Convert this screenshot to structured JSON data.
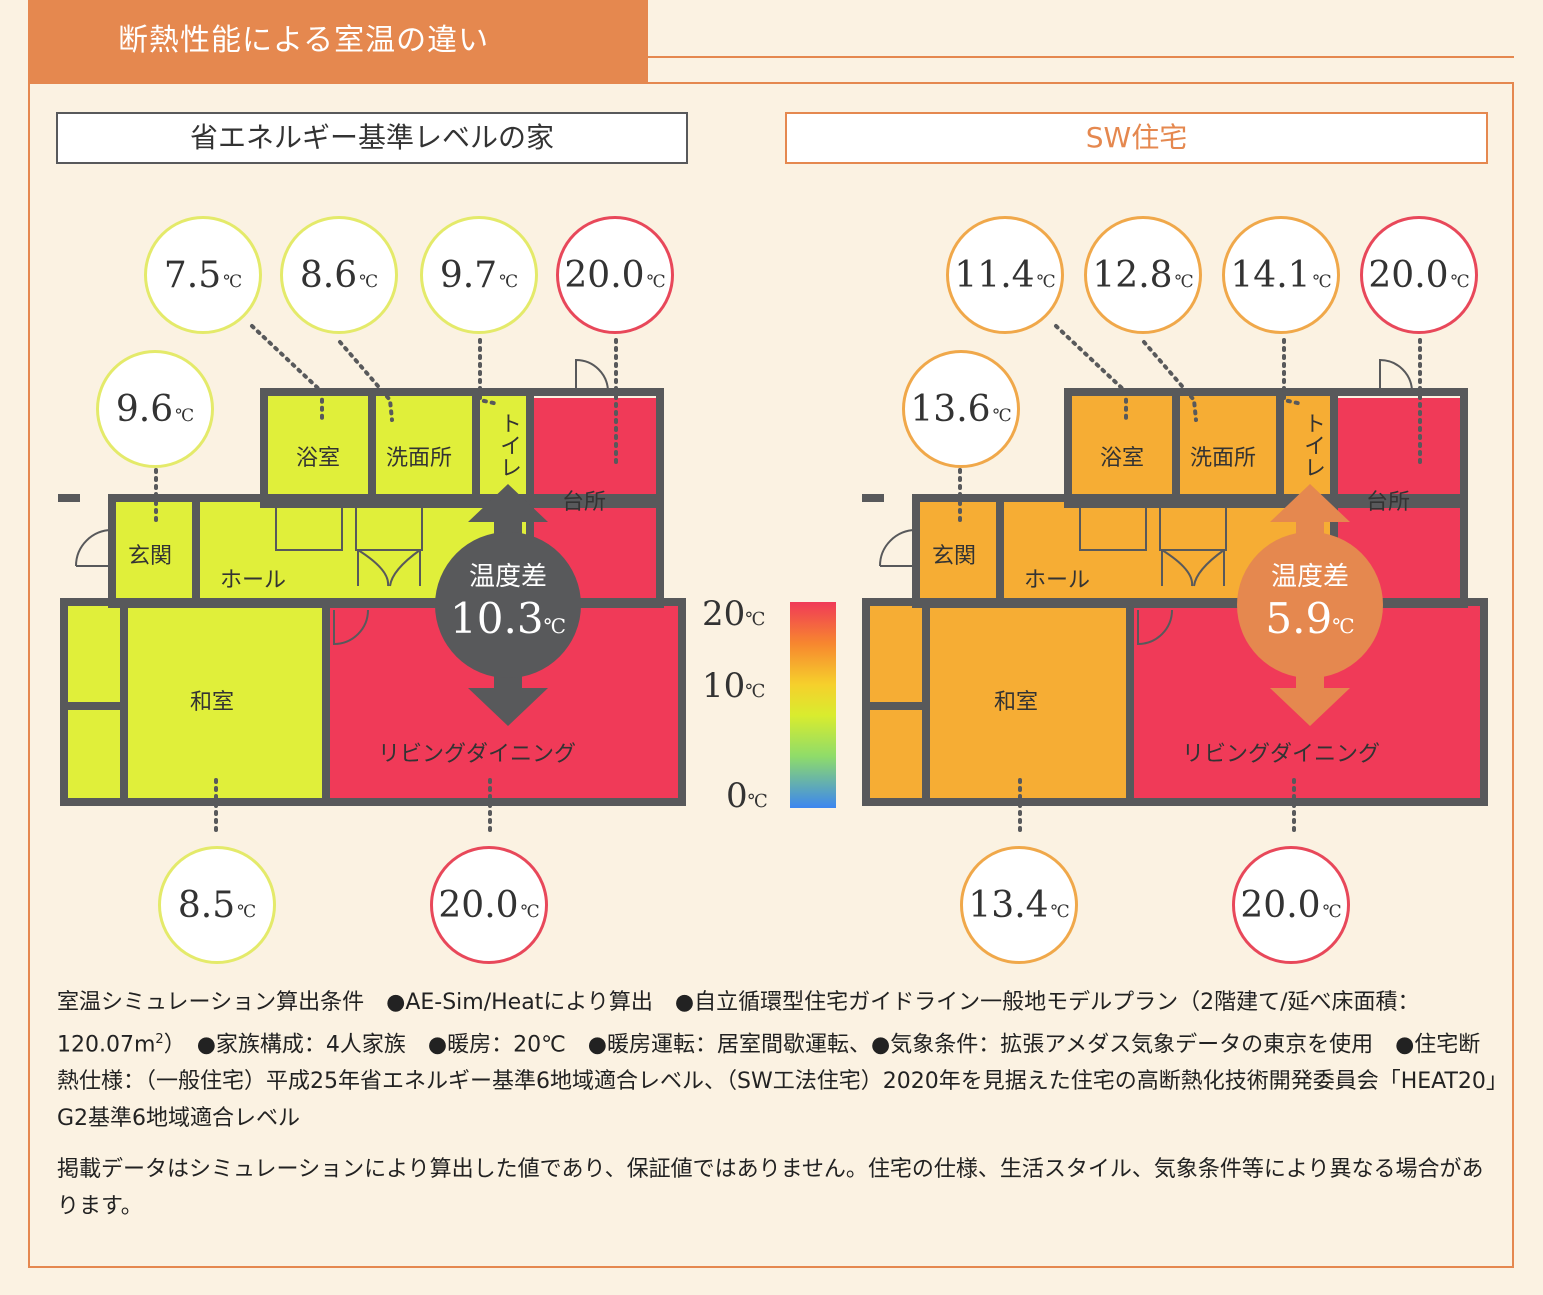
{
  "title": "断熱性能による室温の違い",
  "colors": {
    "accent": "#e5884f",
    "yellow": "#e0ef3a",
    "orange": "#f6ad34",
    "red": "#f03a58",
    "gray": "#58595b"
  },
  "unit": "℃",
  "left": {
    "heading": "省エネルギー基準レベルの家",
    "temps": {
      "bath": "7.5",
      "wash": "8.6",
      "toilet": "9.7",
      "kitchen": "20.0",
      "entrance": "9.6",
      "washitsu": "8.5",
      "living": "20.0"
    },
    "diff_label": "温度差",
    "diff_value": "10.3"
  },
  "right": {
    "heading": "SW住宅",
    "temps": {
      "bath": "11.4",
      "wash": "12.8",
      "toilet": "14.1",
      "kitchen": "20.0",
      "entrance": "13.6",
      "washitsu": "13.4",
      "living": "20.0"
    },
    "diff_label": "温度差",
    "diff_value": "5.9"
  },
  "rooms": {
    "bath": "浴室",
    "wash": "洗面所",
    "toilet": "トイレ",
    "kitchen": "台所",
    "entrance": "玄関",
    "hall": "ホール",
    "washitsu": "和室",
    "living": "リビングダイニング"
  },
  "scale": {
    "top": "20",
    "mid": "10",
    "bottom": "0"
  },
  "notes": {
    "line1": "室温シミュレーション算出条件　●AE-Sim/Heatにより算出　●自立循環型住宅ガイドライン一般地モデルプラン（2階建て/延べ床面積：120.07m",
    "sup": "2",
    "line1b": "）　●家族構成：4人家族　●暖房：20℃　●暖房運転：居室間歇運転、●気象条件：拡張アメダス気象データの東京を使用　●住宅断熱仕様：（一般住宅）平成25年省エネルギー基準6地域適合レベル、（SW工法住宅）2020年を見据えた住宅の高断熱化技術開発委員会「HEAT20」G2基準6地域適合レベル",
    "line2": "掲載データはシミュレーションにより算出した値であり、保証値ではありません。住宅の仕様、生活スタイル、気象条件等により異なる場合があります。"
  }
}
